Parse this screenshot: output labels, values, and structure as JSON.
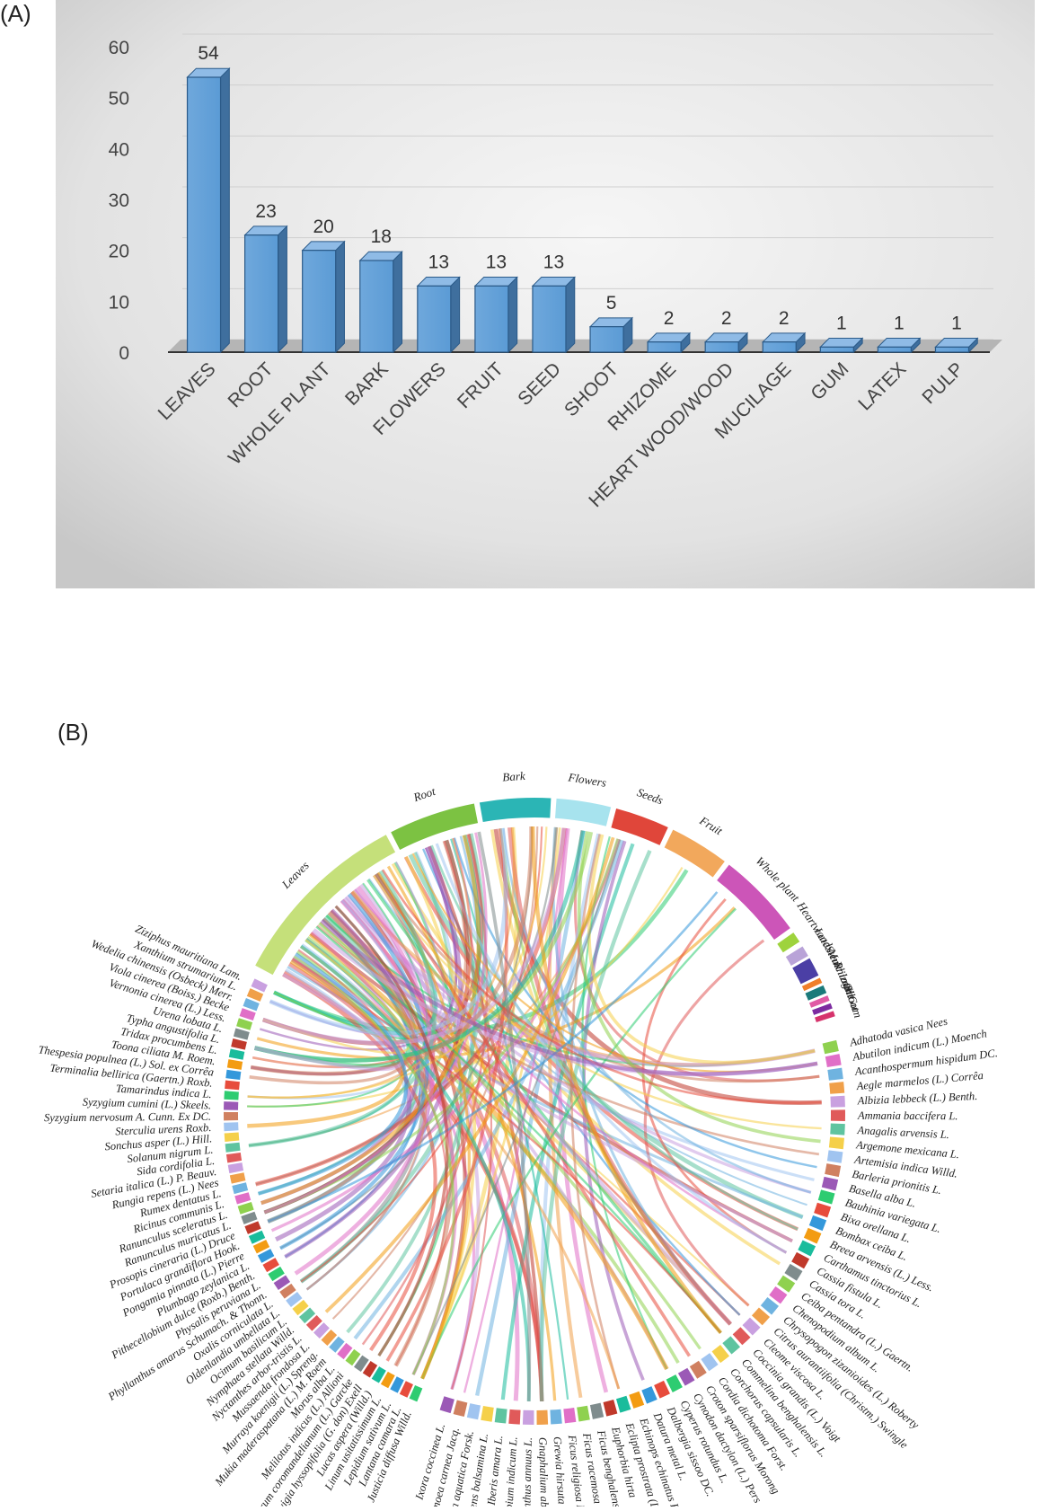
{
  "panels": {
    "a_label": "(A)",
    "b_label": "(B)"
  },
  "chart_data": [
    {
      "type": "bar",
      "categories": [
        "LEAVES",
        "ROOT",
        "WHOLE PLANT",
        "BARK",
        "FLOWERS",
        "FRUIT",
        "SEED",
        "SHOOT",
        "RHIZOME",
        "HEART WOOD/WOOD",
        "MUCILAGE",
        "GUM",
        "LATEX",
        "PULP"
      ],
      "values": [
        54,
        23,
        20,
        18,
        13,
        13,
        13,
        5,
        2,
        2,
        2,
        1,
        1,
        1
      ],
      "data_labels": [
        "54",
        "23",
        "20",
        "18",
        "13",
        "13",
        "13",
        "5",
        "2",
        "2",
        "2",
        "1",
        "1",
        "1"
      ],
      "ylim": [
        0,
        60
      ],
      "yticks": [
        "0",
        "10",
        "20",
        "30",
        "40",
        "50",
        "60"
      ],
      "grid": true,
      "bar_color": "#5b9bd5"
    },
    {
      "type": "chord",
      "parts": [
        {
          "name": "Leaves",
          "color": "#c5e07a"
        },
        {
          "name": "Root",
          "color": "#7cc242"
        },
        {
          "name": "Bark",
          "color": "#2bb5b5"
        },
        {
          "name": "Flowers",
          "color": "#a7e3ee"
        },
        {
          "name": "Seeds",
          "color": "#e0463a"
        },
        {
          "name": "Fruit",
          "color": "#f2a85c"
        },
        {
          "name": "Whole plant",
          "color": "#cc55b8"
        },
        {
          "name": "Heartwood",
          "color": "#9ed33d"
        },
        {
          "name": "Latex",
          "color": "#b9a3d8"
        },
        {
          "name": "Stem",
          "color": "#4b3fa5"
        },
        {
          "name": "Mulcilage",
          "color": "#f07f2a"
        },
        {
          "name": "Rhizome",
          "color": "#1b7a7a"
        },
        {
          "name": "Oil",
          "color": "#e05aa5"
        },
        {
          "name": "Shoot",
          "color": "#7d2ba0"
        },
        {
          "name": "Gum",
          "color": "#d6336c"
        }
      ],
      "species_right": [
        "Adhatoda vasica Nees",
        "Abutilon indicum (L.) Moench",
        "Acanthospermum hispidum DC.",
        "Aegle marmelos (L.) Corrêa",
        "Albizia lebbeck (L.) Benth.",
        "Ammania baccifera L.",
        "Anagalis arvensis L.",
        "Argemone mexicana L.",
        "Artemisia indica Willd.",
        "Barleria prionitis L.",
        "Basella alba L.",
        "Bauhinia variegata L.",
        "Bixa orellana L.",
        "Bombax ceiba L.",
        "Breea arvensis (L.) Less.",
        "Carthamus tinctorius L.",
        "Cassia fistula L.",
        "Cassia tora L.",
        "Ceiba pentandra (L.) Gaertn.",
        "Chenopodium album L.",
        "Chrysopogon zizanioides (L.) Roberty",
        "Citrus aurantiifolia (Christm.) Swingle",
        "Cleome viscosa L.",
        "Coccinia grandis (L.) Voigt",
        "Commelina benghalensis L.",
        "Corchorus capsularis L.",
        "Cordia dichotoma Forst.",
        "Croton sparsiflorus Morong",
        "Cynodon dactylon (L.) Pers",
        "Cyperus rotundus L.",
        "Dalbergia sissoo DC.",
        "Datura metal L.",
        "Echinops echinatus Roxb.",
        "Eclipta prostrata (L.)",
        "Euphorbia hirta",
        "Ficus benghalensis L.",
        "Ficus racemosa L.",
        "Ficus religiosa L.",
        "Grewia hirsuta Vahl",
        "Gnaphalium abyssinica Cass",
        "Helianthus annuus L.",
        "Heliotropium indicum L.",
        "Iberis amara L.",
        "Impatiens balsamina L.",
        "Ipomoea aquatica Forsk.",
        "Ipomoea carnea Jacq.",
        "Ixora coccinea L."
      ],
      "species_left": [
        "Justicia diffusa Willd.",
        "Lantana camara L.",
        "Lepidium sativum L.",
        "Linum usitatissimum L.",
        "Lucas aspera (Willd.)",
        "Ludwigia hyssopifolia (G. don) Exell",
        "Malvastrum coromandelianum (L.) Garcke",
        "Melilotus indicus (L.) Allioni",
        "Morus alba L.",
        "Mukia maderaspatana (L.) M. Roem",
        "Murraya koenigii (L.) Spreng.",
        "Mussaenda frondosa L.",
        "Nyctanthes arbor-tristis L.",
        "Nymphaea stellata Willd.",
        "Ocimum basilicum L.",
        "Oldenlandia umbellata L.",
        "Oxalis corniculata L.",
        "Phyllanthus amarus Schumach. & Thonn.",
        "Physalis peruviana L.",
        "Pithecellobium dulce (Roxb.) Benth.",
        "Plumbago zeylanica L.",
        "Pongamia pinnata (L.) Pierre",
        "Portulaca grandiflora Hook.",
        "Prosopis cineraria (L.) Druce",
        "Ranunculus muricatus L.",
        "Ranunculus sceleratus L.",
        "Ricinus communis L.",
        "Rumex dentatus L.",
        "Rungia repens (L.) Nees",
        "Setaria italica (L.) P. Beauv.",
        "Sida cordifolia L.",
        "Solanum nigrum L.",
        "Sonchus asper (L.) Hill.",
        "Sterculia urens Roxb.",
        "Syzygium nervosum A. Cunn. Ex DC.",
        "Syzygium cumini (L.) Skeels.",
        "Tamarindus indica L.",
        "Terminalia bellirica (Gaertn.) Roxb.",
        "Thespesia populnea (L.) Sol. ex Corrêa",
        "Toona ciliata M. Roem.",
        "Tridax procumbens L.",
        "Typha angustifolia L.",
        "Urena lobata L.",
        "Vernonia cinerea (L.) Less.",
        "Viola cinerea (Boiss.) Becke",
        "Wedelia chinensis (Osbeck) Merr.",
        "Xanthium strumarium L.",
        "Ziziphus mauritiana Lam."
      ]
    }
  ]
}
